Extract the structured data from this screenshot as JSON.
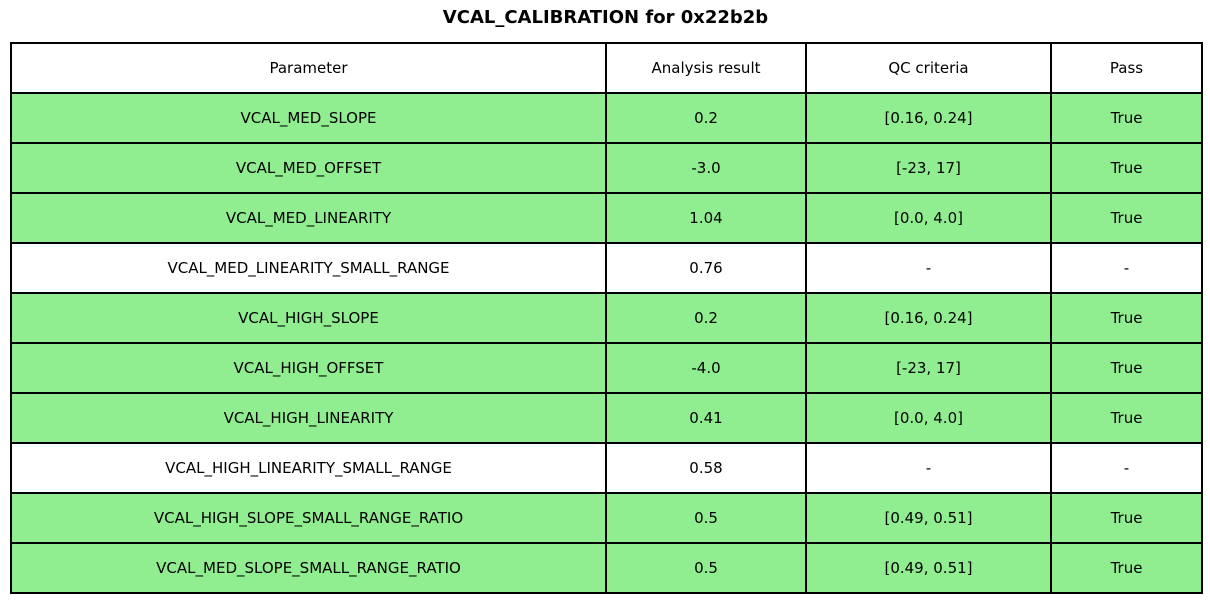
{
  "title": "VCAL_CALIBRATION for 0x22b2b",
  "colors": {
    "pass_row_bg": "#90EE90",
    "neutral_row_bg": "#FFFFFF",
    "border": "#000000"
  },
  "table": {
    "headers": [
      "Parameter",
      "Analysis result",
      "QC criteria",
      "Pass"
    ],
    "rows": [
      {
        "parameter": "VCAL_MED_SLOPE",
        "result": "0.2",
        "criteria": "[0.16, 0.24]",
        "pass": "True",
        "highlighted": true
      },
      {
        "parameter": "VCAL_MED_OFFSET",
        "result": "-3.0",
        "criteria": "[-23, 17]",
        "pass": "True",
        "highlighted": true
      },
      {
        "parameter": "VCAL_MED_LINEARITY",
        "result": "1.04",
        "criteria": "[0.0, 4.0]",
        "pass": "True",
        "highlighted": true
      },
      {
        "parameter": "VCAL_MED_LINEARITY_SMALL_RANGE",
        "result": "0.76",
        "criteria": "-",
        "pass": "-",
        "highlighted": false
      },
      {
        "parameter": "VCAL_HIGH_SLOPE",
        "result": "0.2",
        "criteria": "[0.16, 0.24]",
        "pass": "True",
        "highlighted": true
      },
      {
        "parameter": "VCAL_HIGH_OFFSET",
        "result": "-4.0",
        "criteria": "[-23, 17]",
        "pass": "True",
        "highlighted": true
      },
      {
        "parameter": "VCAL_HIGH_LINEARITY",
        "result": "0.41",
        "criteria": "[0.0, 4.0]",
        "pass": "True",
        "highlighted": true
      },
      {
        "parameter": "VCAL_HIGH_LINEARITY_SMALL_RANGE",
        "result": "0.58",
        "criteria": "-",
        "pass": "-",
        "highlighted": false
      },
      {
        "parameter": "VCAL_HIGH_SLOPE_SMALL_RANGE_RATIO",
        "result": "0.5",
        "criteria": "[0.49, 0.51]",
        "pass": "True",
        "highlighted": true
      },
      {
        "parameter": "VCAL_MED_SLOPE_SMALL_RANGE_RATIO",
        "result": "0.5",
        "criteria": "[0.49, 0.51]",
        "pass": "True",
        "highlighted": true
      }
    ]
  },
  "chart_data": {
    "type": "table",
    "title": "VCAL_CALIBRATION for 0x22b2b",
    "columns": [
      "Parameter",
      "Analysis result",
      "QC criteria",
      "Pass"
    ],
    "rows": [
      [
        "VCAL_MED_SLOPE",
        "0.2",
        "[0.16, 0.24]",
        "True"
      ],
      [
        "VCAL_MED_OFFSET",
        "-3.0",
        "[-23, 17]",
        "True"
      ],
      [
        "VCAL_MED_LINEARITY",
        "1.04",
        "[0.0, 4.0]",
        "True"
      ],
      [
        "VCAL_MED_LINEARITY_SMALL_RANGE",
        "0.76",
        "-",
        "-"
      ],
      [
        "VCAL_HIGH_SLOPE",
        "0.2",
        "[0.16, 0.24]",
        "True"
      ],
      [
        "VCAL_HIGH_OFFSET",
        "-4.0",
        "[-23, 17]",
        "True"
      ],
      [
        "VCAL_HIGH_LINEARITY",
        "0.41",
        "[0.0, 4.0]",
        "True"
      ],
      [
        "VCAL_HIGH_LINEARITY_SMALL_RANGE",
        "0.58",
        "-",
        "-"
      ],
      [
        "VCAL_HIGH_SLOPE_SMALL_RANGE_RATIO",
        "0.5",
        "[0.49, 0.51]",
        "True"
      ],
      [
        "VCAL_MED_SLOPE_SMALL_RANGE_RATIO",
        "0.5",
        "[0.49, 0.51]",
        "True"
      ]
    ],
    "layout_hints": {
      "row_highlight_color": "#90EE90",
      "highlighted_rows": [
        0,
        1,
        2,
        4,
        5,
        6,
        8,
        9
      ],
      "grid": true,
      "legend": "none"
    }
  }
}
